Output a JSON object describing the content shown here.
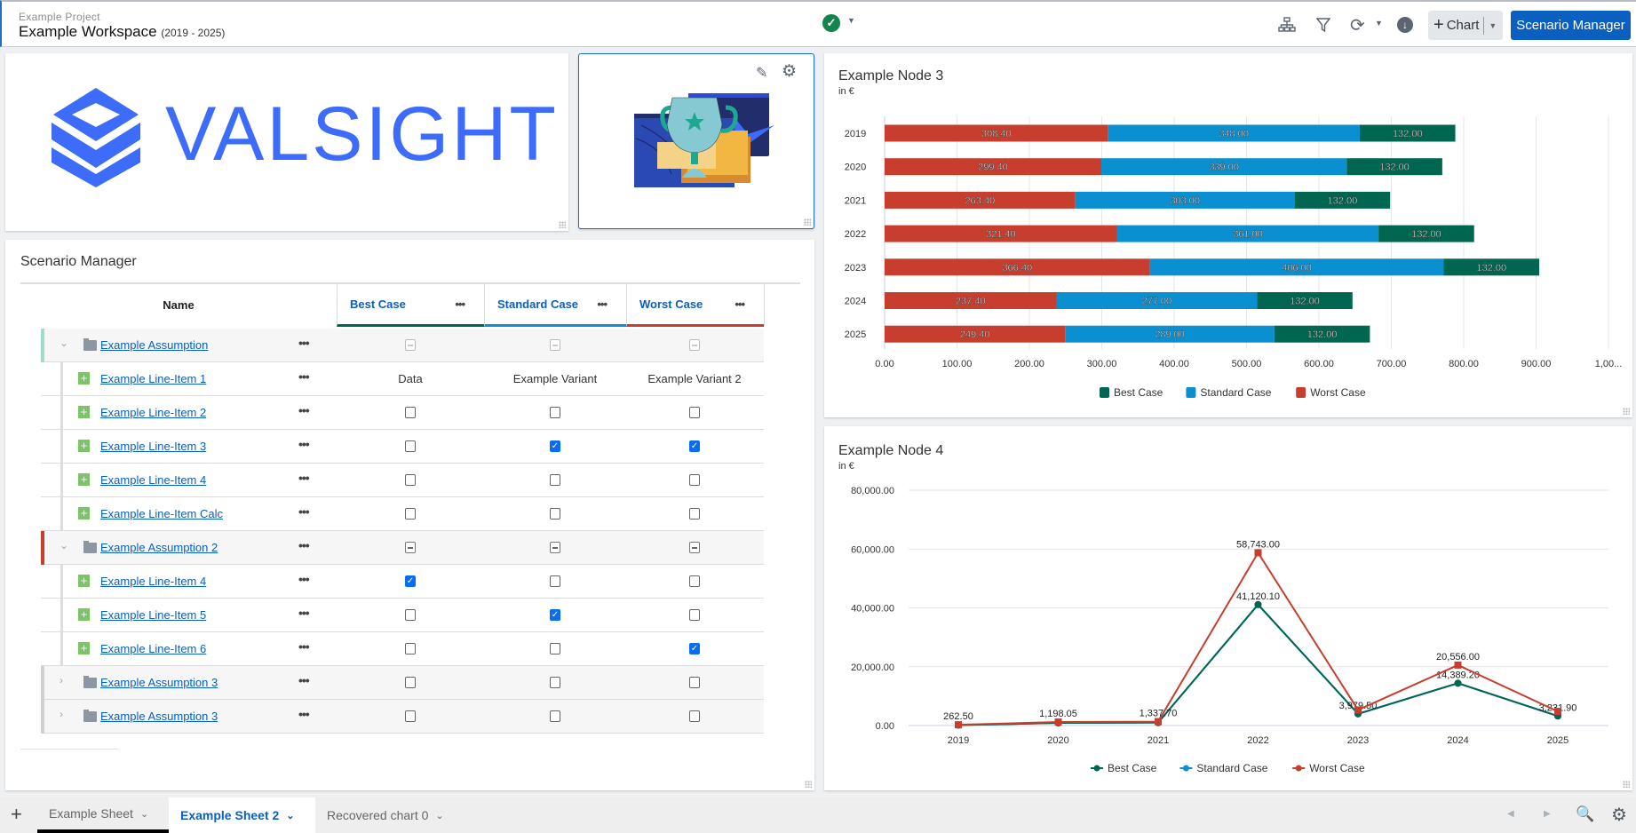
{
  "header": {
    "project": "Example Project",
    "workspace": "Example Workspace",
    "range": "(2019 - 2025)",
    "status_icon": "check-circle-icon",
    "chart_button": "Chart",
    "scenario_button": "Scenario Manager"
  },
  "logo": {
    "text": "VALSIGHT",
    "color": "#3d6bfa"
  },
  "scenario": {
    "title": "Scenario Manager",
    "columns": {
      "name": "Name",
      "scenarios": [
        {
          "label": "Best Case",
          "color": "#006650"
        },
        {
          "label": "Standard Case",
          "color": "#0a8fd0"
        },
        {
          "label": "Worst Case",
          "color": "#c73e2e"
        }
      ]
    },
    "rows": [
      {
        "type": "group",
        "label": "Example Assumption",
        "expanded": true,
        "bar": "#9fdcc9",
        "cells": [
          "ind-light",
          "ind-light",
          "ind-light"
        ]
      },
      {
        "type": "item",
        "label": "Example Line-Item 1",
        "cells": [
          "Data",
          "Example Variant",
          "Example Variant 2"
        ]
      },
      {
        "type": "item",
        "label": "Example Line-Item 2",
        "cells": [
          false,
          false,
          false
        ]
      },
      {
        "type": "item",
        "label": "Example Line-Item 3",
        "cells": [
          false,
          true,
          true
        ]
      },
      {
        "type": "item",
        "label": "Example Line-Item 4",
        "cells": [
          false,
          false,
          false
        ]
      },
      {
        "type": "item",
        "label": "Example Line-Item Calc",
        "cells": [
          false,
          false,
          false
        ]
      },
      {
        "type": "group",
        "label": "Example Assumption 2",
        "expanded": true,
        "bar": "#c73e2e",
        "cells": [
          "ind",
          "ind",
          "ind"
        ]
      },
      {
        "type": "item",
        "label": "Example Line-Item 4",
        "cells": [
          true,
          false,
          false
        ]
      },
      {
        "type": "item",
        "label": "Example Line-Item 5",
        "cells": [
          false,
          true,
          false
        ]
      },
      {
        "type": "item",
        "label": "Example Line-Item 6",
        "cells": [
          false,
          false,
          true
        ]
      },
      {
        "type": "group",
        "label": "Example Assumption 3",
        "expanded": false,
        "bar": "#d0d0d0",
        "cells": [
          false,
          false,
          false
        ]
      },
      {
        "type": "group",
        "label": "Example Assumption 3",
        "expanded": false,
        "bar": "#d0d0d0",
        "cells": [
          false,
          false,
          false
        ]
      }
    ]
  },
  "chart_data": [
    {
      "type": "bar",
      "orientation": "horizontal",
      "stacked": true,
      "title": "Example Node 3",
      "subtitle": "in €",
      "categories": [
        "2019",
        "2020",
        "2021",
        "2022",
        "2023",
        "2024",
        "2025"
      ],
      "series": [
        {
          "name": "Worst Case",
          "color": "#c73e2e",
          "values": [
            308.4,
            299.4,
            263.4,
            321.4,
            366.4,
            237.4,
            249.4
          ]
        },
        {
          "name": "Standard Case",
          "color": "#0a8fd0",
          "values": [
            348,
            339,
            303,
            361,
            406,
            277,
            289
          ]
        },
        {
          "name": "Best Case",
          "color": "#006650",
          "values": [
            132,
            132,
            132,
            132,
            132,
            132,
            132
          ]
        }
      ],
      "xlim": [
        0,
        1000
      ],
      "ticks": [
        "0.00",
        "100.00",
        "200.00",
        "300.00",
        "400.00",
        "500.00",
        "600.00",
        "700.00",
        "800.00",
        "900.00",
        "1,00..."
      ],
      "legend": [
        "Best Case",
        "Standard Case",
        "Worst Case"
      ],
      "legend_position": "bottom",
      "grid": true
    },
    {
      "type": "line",
      "title": "Example Node 4",
      "subtitle": "in €",
      "categories": [
        "2019",
        "2020",
        "2021",
        "2022",
        "2023",
        "2024",
        "2025"
      ],
      "series": [
        {
          "name": "Standard Case",
          "color": "#0a8fd0",
          "values": [
            150,
            900,
            1000,
            41120.1,
            3979.5,
            14389.2,
            3231.9
          ],
          "labels": [
            null,
            null,
            null,
            null,
            null,
            null,
            null
          ]
        },
        {
          "name": "Best Case",
          "color": "#006650",
          "values": [
            150,
            900,
            1000,
            41120.1,
            3979.5,
            14389.2,
            3231.9
          ],
          "labels": [
            null,
            null,
            null,
            "41,120.10",
            "3,979.50",
            "14,389.20",
            "3,231.90"
          ]
        },
        {
          "name": "Worst Case",
          "color": "#c73e2e",
          "values": [
            262.5,
            1198.05,
            1337.7,
            58743,
            5300,
            20556,
            4800
          ],
          "labels": [
            "262.50",
            "1,198.05",
            "1,337.70",
            "58,743.00",
            null,
            "20,556.00",
            null
          ]
        }
      ],
      "ylim": [
        0,
        80000
      ],
      "yticks": [
        "0.00",
        "20,000.00",
        "40,000.00",
        "60,000.00",
        "80,000.00"
      ],
      "legend": [
        "Best Case",
        "Standard Case",
        "Worst Case"
      ],
      "legend_position": "bottom",
      "grid": true
    }
  ],
  "tabs": {
    "add": "+",
    "items": [
      {
        "label": "Example Sheet",
        "active": false
      },
      {
        "label": "Example Sheet 2",
        "active": true
      },
      {
        "label": "Recovered chart 0",
        "active": false
      }
    ]
  }
}
